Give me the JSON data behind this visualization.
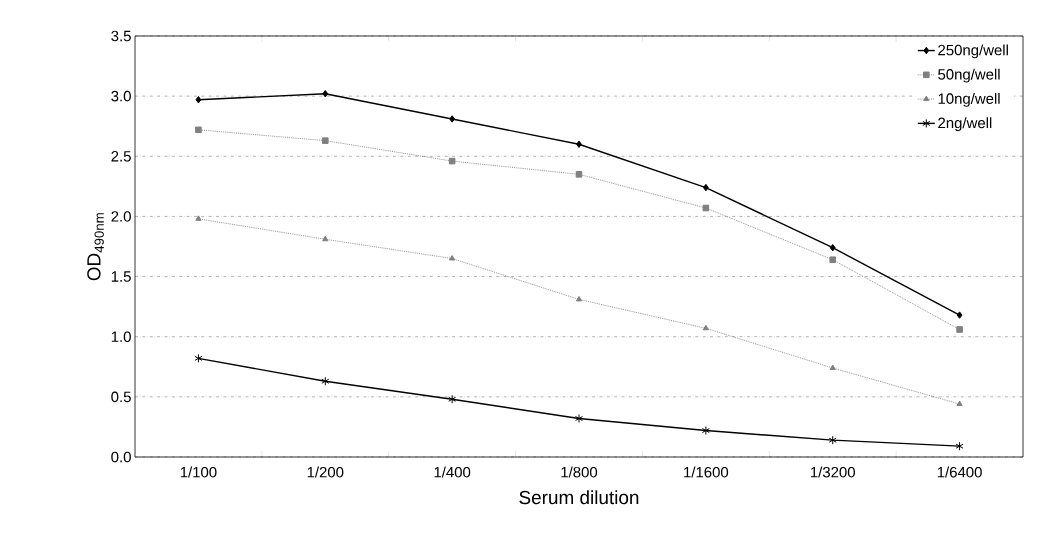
{
  "chart_data": {
    "type": "line",
    "xlabel": "Serum dilution",
    "ylabel": "OD$_{490nm}$",
    "categories": [
      "1/100",
      "1/200",
      "1/400",
      "1/800",
      "1/1600",
      "1/3200",
      "1/6400"
    ],
    "ylim": [
      0,
      3.5
    ],
    "yticks": [
      {
        "value": 0,
        "label": "0.0"
      },
      {
        "value": 0.5,
        "label": "0.5"
      },
      {
        "value": 1,
        "label": "1.0"
      },
      {
        "value": 1.5,
        "label": "1.5"
      },
      {
        "value": 2,
        "label": "2.0"
      },
      {
        "value": 2.5,
        "label": "2.5"
      },
      {
        "value": 3,
        "label": "3.0"
      },
      {
        "value": 3.5,
        "label": "3.5"
      }
    ],
    "grid": "y",
    "legend": "top right",
    "series": [
      {
        "name": "250ng/well",
        "color": "#000000",
        "marker": "diamond",
        "line_style": "solid",
        "values": [
          2.97,
          3.02,
          2.81,
          2.6,
          2.24,
          1.74,
          1.18
        ]
      },
      {
        "name": "50ng/well",
        "color": "#808080",
        "marker": "square",
        "line_style": "dotted",
        "values": [
          2.72,
          2.63,
          2.46,
          2.35,
          2.07,
          1.64,
          1.06
        ]
      },
      {
        "name": "10ng/well",
        "color": "#808080",
        "marker": "triangle",
        "line_style": "dotted",
        "values": [
          1.98,
          1.81,
          1.65,
          1.31,
          1.07,
          0.74,
          0.44
        ]
      },
      {
        "name": "2ng/well",
        "color": "#000000",
        "marker": "cross",
        "line_style": "solid",
        "values": [
          0.82,
          0.63,
          0.48,
          0.32,
          0.22,
          0.14,
          0.09
        ]
      }
    ]
  }
}
